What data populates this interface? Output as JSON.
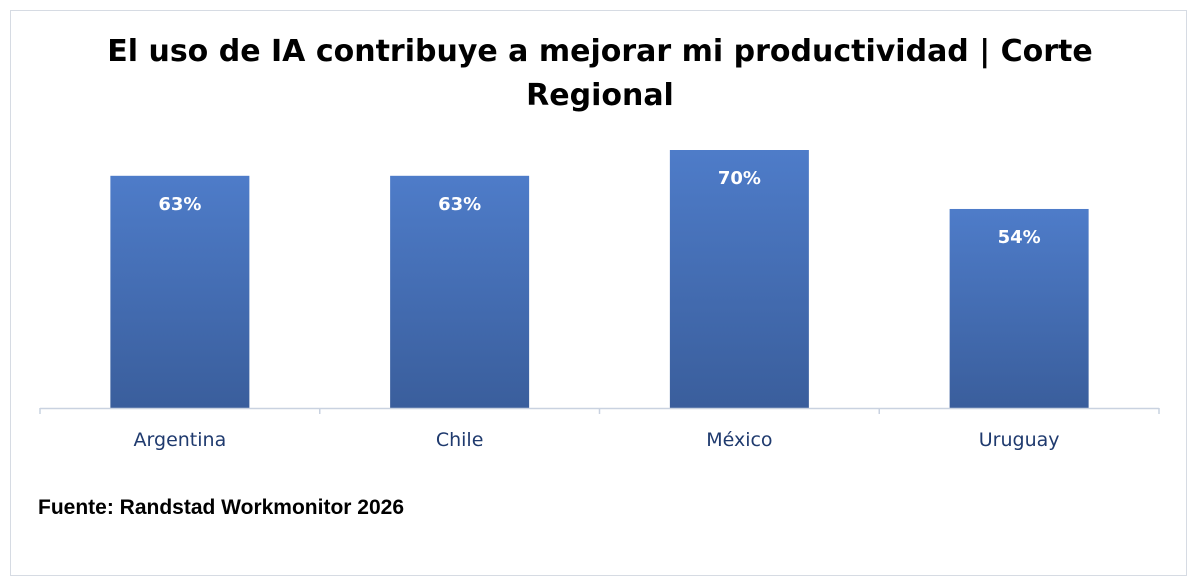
{
  "chart_data": {
    "type": "bar",
    "title": "El uso de IA contribuye a mejorar mi productividad | Corte Regional",
    "categories": [
      "Argentina",
      "Chile",
      "México",
      "Uruguay"
    ],
    "values": [
      63,
      63,
      70,
      54
    ],
    "data_labels": [
      "63%",
      "63%",
      "70%",
      "54%"
    ],
    "unit": "%",
    "ylim": [
      0,
      70
    ],
    "grid": false,
    "legend": "none",
    "bar_color_top": "#4e7cc9",
    "bar_color_bottom": "#3a5e9c",
    "axis_color": "#c9d2e0",
    "category_label_color": "#1f3a6e"
  },
  "source_note": "Fuente: Randstad Workmonitor 2026"
}
